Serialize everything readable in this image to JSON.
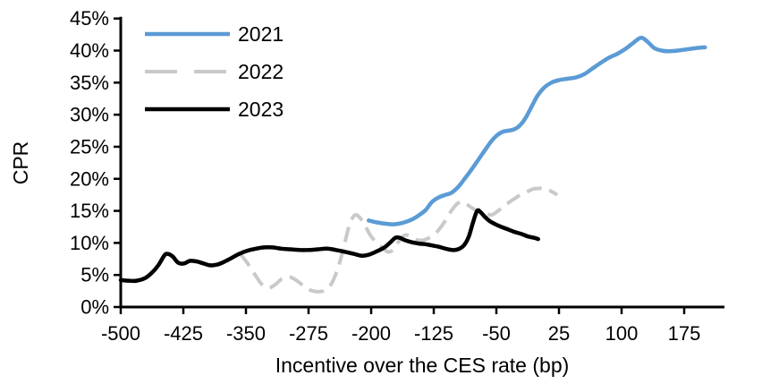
{
  "chart_data": {
    "type": "line",
    "title": "",
    "xlabel": "Incentive over the CES rate (bp)",
    "ylabel": "CPR",
    "xlim": [
      -500,
      210
    ],
    "ylim": [
      0,
      45
    ],
    "xticks": [
      -500,
      -425,
      -350,
      -275,
      -200,
      -125,
      -50,
      25,
      100,
      175
    ],
    "yticks": [
      0,
      5,
      10,
      15,
      20,
      25,
      30,
      35,
      40,
      45
    ],
    "ytick_suffix": "%",
    "grid": false,
    "legend_position": "top-left",
    "axis_color": "#000000",
    "series": [
      {
        "name": "2021",
        "color": "#5B9BD5",
        "style": "solid",
        "points": [
          [
            -203,
            13.5
          ],
          [
            -193,
            13.2
          ],
          [
            -183,
            13.0
          ],
          [
            -173,
            12.9
          ],
          [
            -163,
            13.1
          ],
          [
            -152,
            13.6
          ],
          [
            -143,
            14.3
          ],
          [
            -135,
            15.1
          ],
          [
            -127,
            16.4
          ],
          [
            -119,
            17.1
          ],
          [
            -111,
            17.5
          ],
          [
            -104,
            17.8
          ],
          [
            -96,
            18.7
          ],
          [
            -88,
            20.0
          ],
          [
            -80,
            21.4
          ],
          [
            -72,
            22.9
          ],
          [
            -64,
            24.4
          ],
          [
            -57,
            25.7
          ],
          [
            -50,
            26.7
          ],
          [
            -43,
            27.3
          ],
          [
            -36,
            27.5
          ],
          [
            -29,
            27.7
          ],
          [
            -22,
            28.3
          ],
          [
            -15,
            29.5
          ],
          [
            -8,
            31.2
          ],
          [
            -1,
            32.9
          ],
          [
            7,
            34.2
          ],
          [
            16,
            35.0
          ],
          [
            25,
            35.4
          ],
          [
            35,
            35.6
          ],
          [
            45,
            35.8
          ],
          [
            55,
            36.3
          ],
          [
            64,
            37.1
          ],
          [
            74,
            38.0
          ],
          [
            85,
            38.9
          ],
          [
            95,
            39.5
          ],
          [
            105,
            40.3
          ],
          [
            114,
            41.2
          ],
          [
            123,
            42.0
          ],
          [
            131,
            41.4
          ],
          [
            139,
            40.4
          ],
          [
            148,
            40.0
          ],
          [
            157,
            39.9
          ],
          [
            167,
            40.0
          ],
          [
            178,
            40.2
          ],
          [
            190,
            40.4
          ],
          [
            200,
            40.5
          ]
        ]
      },
      {
        "name": "2022",
        "color": "#C9C9C9",
        "style": "dashed",
        "points": [
          [
            -357,
            8.3
          ],
          [
            -348,
            6.8
          ],
          [
            -339,
            5.0
          ],
          [
            -330,
            3.4
          ],
          [
            -322,
            3.0
          ],
          [
            -314,
            3.6
          ],
          [
            -306,
            4.5
          ],
          [
            -298,
            4.7
          ],
          [
            -290,
            4.2
          ],
          [
            -282,
            3.4
          ],
          [
            -274,
            2.7
          ],
          [
            -266,
            2.4
          ],
          [
            -258,
            2.5
          ],
          [
            -250,
            3.2
          ],
          [
            -244,
            4.6
          ],
          [
            -238,
            6.8
          ],
          [
            -232,
            9.8
          ],
          [
            -226,
            12.8
          ],
          [
            -220,
            14.3
          ],
          [
            -214,
            14.0
          ],
          [
            -207,
            12.6
          ],
          [
            -200,
            11.0
          ],
          [
            -193,
            10.0
          ],
          [
            -186,
            9.2
          ],
          [
            -180,
            8.6
          ],
          [
            -174,
            8.9
          ],
          [
            -167,
            10.2
          ],
          [
            -160,
            11.2
          ],
          [
            -153,
            11.0
          ],
          [
            -146,
            10.5
          ],
          [
            -139,
            10.4
          ],
          [
            -132,
            10.7
          ],
          [
            -125,
            11.2
          ],
          [
            -118,
            12.2
          ],
          [
            -111,
            13.5
          ],
          [
            -104,
            15.0
          ],
          [
            -97,
            16.1
          ],
          [
            -90,
            16.4
          ],
          [
            -83,
            15.8
          ],
          [
            -76,
            15.2
          ],
          [
            -69,
            14.8
          ],
          [
            -62,
            14.5
          ],
          [
            -55,
            14.4
          ],
          [
            -48,
            15.0
          ],
          [
            -41,
            15.7
          ],
          [
            -34,
            16.4
          ],
          [
            -27,
            17.0
          ],
          [
            -20,
            17.6
          ],
          [
            -13,
            18.0
          ],
          [
            -6,
            18.4
          ],
          [
            1,
            18.5
          ],
          [
            8,
            18.5
          ],
          [
            15,
            18.1
          ],
          [
            23,
            17.5
          ]
        ]
      },
      {
        "name": "2023",
        "color": "#000000",
        "style": "solid",
        "points": [
          [
            -500,
            4.2
          ],
          [
            -490,
            4.1
          ],
          [
            -481,
            4.1
          ],
          [
            -471,
            4.5
          ],
          [
            -463,
            5.3
          ],
          [
            -455,
            6.5
          ],
          [
            -448,
            8.0
          ],
          [
            -444,
            8.3
          ],
          [
            -438,
            7.9
          ],
          [
            -431,
            6.9
          ],
          [
            -424,
            6.8
          ],
          [
            -417,
            7.2
          ],
          [
            -409,
            7.1
          ],
          [
            -401,
            6.8
          ],
          [
            -393,
            6.5
          ],
          [
            -385,
            6.6
          ],
          [
            -377,
            7.0
          ],
          [
            -368,
            7.6
          ],
          [
            -358,
            8.3
          ],
          [
            -348,
            8.8
          ],
          [
            -338,
            9.1
          ],
          [
            -328,
            9.3
          ],
          [
            -318,
            9.3
          ],
          [
            -308,
            9.1
          ],
          [
            -297,
            9.0
          ],
          [
            -286,
            8.9
          ],
          [
            -275,
            8.9
          ],
          [
            -264,
            9.0
          ],
          [
            -253,
            9.1
          ],
          [
            -242,
            8.9
          ],
          [
            -231,
            8.6
          ],
          [
            -221,
            8.3
          ],
          [
            -211,
            8.0
          ],
          [
            -202,
            8.2
          ],
          [
            -193,
            8.7
          ],
          [
            -184,
            9.3
          ],
          [
            -177,
            10.1
          ],
          [
            -171,
            10.8
          ],
          [
            -166,
            10.8
          ],
          [
            -159,
            10.4
          ],
          [
            -151,
            10.1
          ],
          [
            -143,
            9.9
          ],
          [
            -135,
            9.8
          ],
          [
            -127,
            9.6
          ],
          [
            -119,
            9.4
          ],
          [
            -111,
            9.1
          ],
          [
            -103,
            8.9
          ],
          [
            -96,
            9.0
          ],
          [
            -89,
            9.6
          ],
          [
            -83,
            11.0
          ],
          [
            -78,
            13.2
          ],
          [
            -73,
            15.0
          ],
          [
            -69,
            14.8
          ],
          [
            -64,
            14.1
          ],
          [
            -58,
            13.4
          ],
          [
            -51,
            12.9
          ],
          [
            -44,
            12.5
          ],
          [
            -36,
            12.1
          ],
          [
            -28,
            11.7
          ],
          [
            -20,
            11.4
          ],
          [
            -12,
            11.0
          ],
          [
            -5,
            10.8
          ],
          [
            0,
            10.6
          ]
        ]
      }
    ],
    "legend": [
      {
        "label": "2021"
      },
      {
        "label": "2022"
      },
      {
        "label": "2023"
      }
    ]
  }
}
